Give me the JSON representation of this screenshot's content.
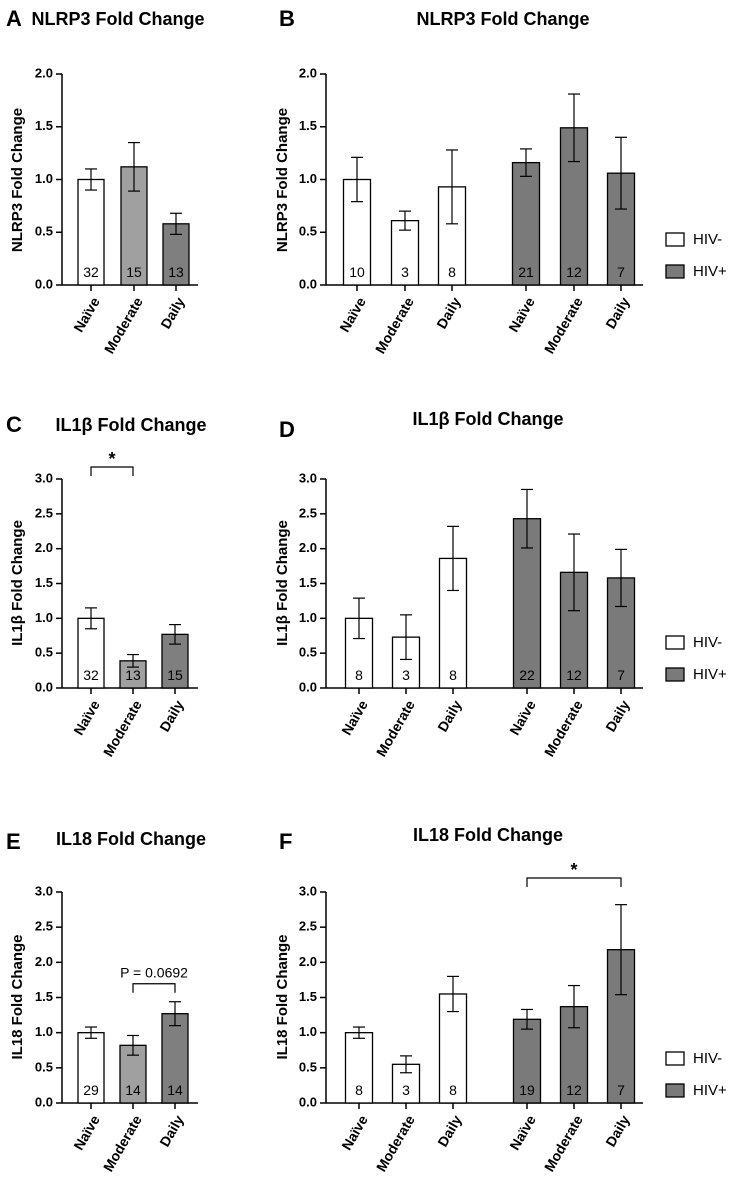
{
  "legend": {
    "hiv_neg": "HIV-",
    "hiv_pos": "HIV+"
  },
  "colors": {
    "white": "#ffffff",
    "light_gray": "#a0a0a0",
    "mid_gray": "#7f7f7f",
    "dark_gray": "#7a7a7a"
  },
  "chart_data": [
    {
      "panel": "A",
      "type": "bar",
      "title": "NLRP3 Fold Change",
      "ylabel": "NLRP3 Fold Change",
      "ylim": [
        0,
        2.0
      ],
      "yticks": [
        "0.0",
        "0.5",
        "1.0",
        "1.5",
        "2.0"
      ],
      "categories": [
        "Naïve",
        "Moderate",
        "Daily"
      ],
      "values": [
        1.0,
        1.12,
        0.58
      ],
      "errors": [
        0.1,
        0.23,
        0.1
      ],
      "n": [
        "32",
        "15",
        "13"
      ],
      "fills": [
        "white",
        "light_gray",
        "mid_gray"
      ]
    },
    {
      "panel": "B",
      "type": "bar",
      "title": "NLRP3 Fold Change",
      "ylabel": "NLRP3 Fold Change",
      "ylim": [
        0,
        2.0
      ],
      "yticks": [
        "0.0",
        "0.5",
        "1.0",
        "1.5",
        "2.0"
      ],
      "categories": [
        "Naïve",
        "Moderate",
        "Daily",
        "Naïve",
        "Moderate",
        "Daily"
      ],
      "values": [
        1.0,
        0.61,
        0.93,
        1.16,
        1.49,
        1.06
      ],
      "errors": [
        0.21,
        0.09,
        0.35,
        0.13,
        0.32,
        0.34
      ],
      "n": [
        "10",
        "3",
        "8",
        "21",
        "12",
        "7"
      ],
      "fills": [
        "white",
        "white",
        "white",
        "dark_gray",
        "dark_gray",
        "dark_gray"
      ],
      "legend": true
    },
    {
      "panel": "C",
      "type": "bar",
      "title": "IL1β Fold Change",
      "ylabel": "IL1β Fold Change",
      "ylim": [
        0,
        3.0
      ],
      "yticks": [
        "0.0",
        "0.5",
        "1.0",
        "1.5",
        "2.0",
        "2.5",
        "3.0"
      ],
      "categories": [
        "Naïve",
        "Moderate",
        "Daily"
      ],
      "values": [
        1.0,
        0.39,
        0.77
      ],
      "errors": [
        0.15,
        0.09,
        0.14
      ],
      "n": [
        "32",
        "13",
        "15"
      ],
      "fills": [
        "white",
        "light_gray",
        "mid_gray"
      ],
      "significance": [
        {
          "from": 0,
          "to": 1,
          "label": "*"
        }
      ]
    },
    {
      "panel": "D",
      "type": "bar",
      "title": "IL1β Fold Change",
      "ylabel": "IL1β Fold Change",
      "ylim": [
        0,
        3.0
      ],
      "yticks": [
        "0.0",
        "0.5",
        "1.0",
        "1.5",
        "2.0",
        "2.5",
        "3.0"
      ],
      "categories": [
        "Naïve",
        "Moderate",
        "Daily",
        "Naïve",
        "Moderate",
        "Daily"
      ],
      "values": [
        1.0,
        0.73,
        1.86,
        2.43,
        1.66,
        1.58
      ],
      "errors": [
        0.29,
        0.32,
        0.46,
        0.42,
        0.55,
        0.41
      ],
      "n": [
        "8",
        "3",
        "8",
        "22",
        "12",
        "7"
      ],
      "fills": [
        "white",
        "white",
        "white",
        "dark_gray",
        "dark_gray",
        "dark_gray"
      ],
      "legend": true
    },
    {
      "panel": "E",
      "type": "bar",
      "title": "IL18 Fold Change",
      "ylabel": "IL18 Fold Change",
      "ylim": [
        0,
        3.0
      ],
      "yticks": [
        "0.0",
        "0.5",
        "1.0",
        "1.5",
        "2.0",
        "2.5",
        "3.0"
      ],
      "categories": [
        "Naïve",
        "Moderate",
        "Daily"
      ],
      "values": [
        1.0,
        0.82,
        1.27
      ],
      "errors": [
        0.08,
        0.14,
        0.17
      ],
      "n": [
        "29",
        "14",
        "14"
      ],
      "fills": [
        "white",
        "light_gray",
        "mid_gray"
      ],
      "significance": [
        {
          "from": 1,
          "to": 2,
          "label": "P = 0.0692"
        }
      ]
    },
    {
      "panel": "F",
      "type": "bar",
      "title": "IL18 Fold Change",
      "ylabel": "IL18 Fold Change",
      "ylim": [
        0,
        3.0
      ],
      "yticks": [
        "0.0",
        "0.5",
        "1.0",
        "1.5",
        "2.0",
        "2.5",
        "3.0"
      ],
      "categories": [
        "Naïve",
        "Moderate",
        "Daily",
        "Naïve",
        "Moderate",
        "Daily"
      ],
      "values": [
        1.0,
        0.55,
        1.55,
        1.19,
        1.37,
        2.18
      ],
      "errors": [
        0.08,
        0.12,
        0.25,
        0.14,
        0.3,
        0.64
      ],
      "n": [
        "8",
        "3",
        "8",
        "19",
        "12",
        "7"
      ],
      "fills": [
        "white",
        "white",
        "white",
        "dark_gray",
        "dark_gray",
        "dark_gray"
      ],
      "legend": true,
      "significance": [
        {
          "from": 3,
          "to": 5,
          "label": "*"
        }
      ]
    }
  ]
}
